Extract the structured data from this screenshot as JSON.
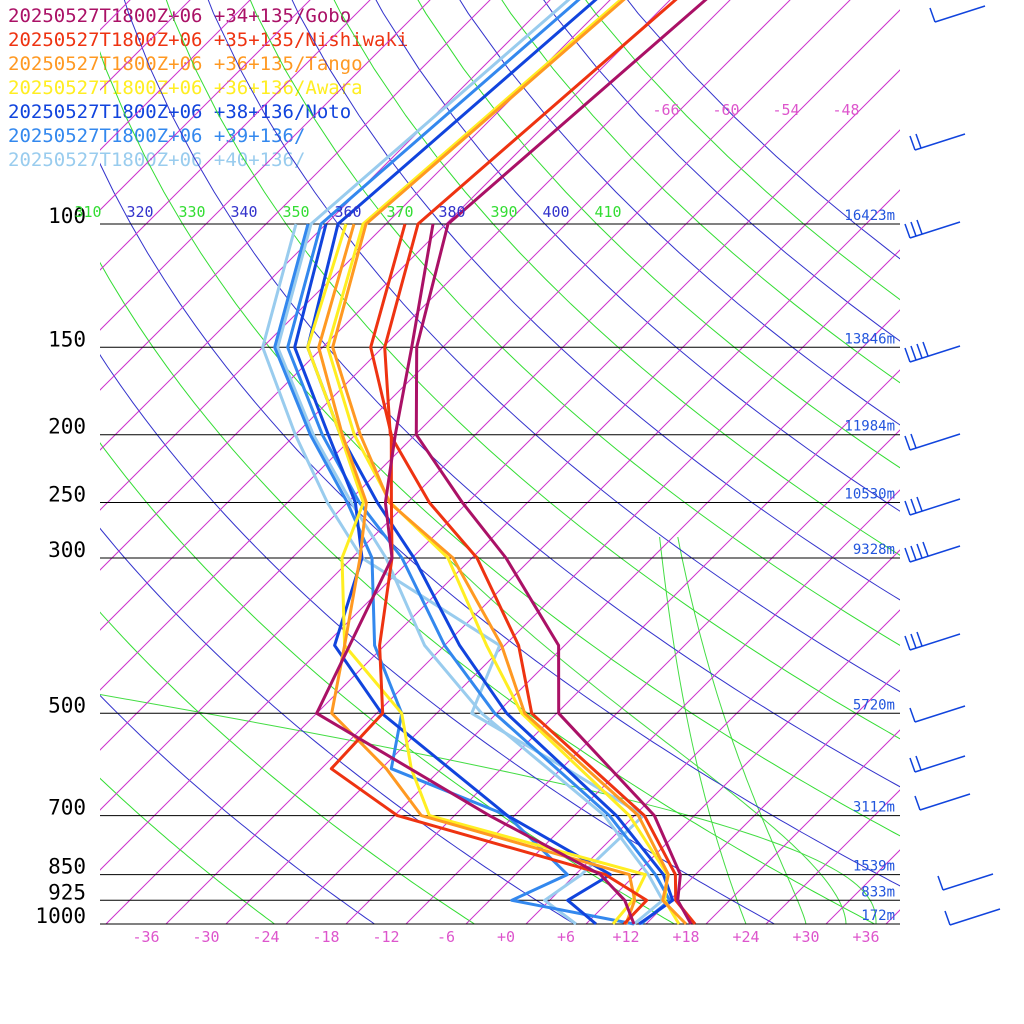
{
  "chart_data": {
    "type": "line",
    "subtype": "skew-t log-p sounding",
    "x_axis_label": "",
    "y_axis_label": "",
    "pressure_levels": [
      100,
      150,
      200,
      250,
      300,
      500,
      700,
      850,
      925,
      1000
    ],
    "pressure_labels": [
      "100",
      "150",
      "200",
      "250",
      "300",
      "500",
      "700",
      "850",
      "925",
      "1000"
    ],
    "heights": [
      "16423m",
      "13846m",
      "11984m",
      "10530m",
      "9328m",
      "5720m",
      "3112m",
      "1539m",
      "833m",
      "172m"
    ],
    "temperature_ticks": [
      -36,
      -30,
      -24,
      -18,
      -12,
      -6,
      0,
      6,
      12,
      18,
      24,
      30,
      36
    ],
    "temperature_labels": [
      "-36",
      "-30",
      "-24",
      "-18",
      "-12",
      "-6",
      "+0",
      "+6",
      "+12",
      "+18",
      "+24",
      "+30",
      "+36"
    ],
    "upper_temp_labels": [
      "-66",
      "-60",
      "-54",
      "-48"
    ],
    "theta_labels": [
      "310",
      "320",
      "330",
      "340",
      "350",
      "360",
      "370",
      "380",
      "390",
      "400",
      "410"
    ],
    "series": [
      {
        "name": "20250527T1800Z+06 +34+135/Gobo",
        "color": "#aa1166",
        "temperature": [
          [
            1000,
            18.5
          ],
          [
            925,
            14.8
          ],
          [
            850,
            12.5
          ],
          [
            700,
            4.0
          ],
          [
            500,
            -15.8
          ],
          [
            400,
            -22.6
          ],
          [
            300,
            -36.6
          ],
          [
            250,
            -46.5
          ],
          [
            200,
            -57.9
          ],
          [
            150,
            -66.6
          ],
          [
            100,
            -75.8
          ]
        ],
        "dewpoint": [
          [
            1000,
            12.8
          ],
          [
            925,
            9.5
          ],
          [
            850,
            4.5
          ],
          [
            700,
            -12.5
          ],
          [
            500,
            -40.0
          ],
          [
            400,
            -43.5
          ],
          [
            300,
            -48.0
          ],
          [
            250,
            -54.2
          ],
          [
            200,
            -60.0
          ],
          [
            150,
            -67.1
          ],
          [
            100,
            -77.3
          ]
        ]
      },
      {
        "name": "20250527T1800Z+06 +35+135/Nishiwaki",
        "color": "#ee3311",
        "temperature": [
          [
            1000,
            18.9
          ],
          [
            925,
            14.6
          ],
          [
            850,
            12.0
          ],
          [
            700,
            3.0
          ],
          [
            500,
            -18.5
          ],
          [
            400,
            -26.6
          ],
          [
            300,
            -39.5
          ],
          [
            250,
            -49.8
          ],
          [
            200,
            -60.5
          ],
          [
            150,
            -69.8
          ],
          [
            100,
            -78.8
          ]
        ],
        "dewpoint": [
          [
            1000,
            11.8
          ],
          [
            925,
            11.7
          ],
          [
            850,
            5.0
          ],
          [
            700,
            -21.7
          ],
          [
            600,
            -33.0
          ],
          [
            500,
            -33.4
          ],
          [
            400,
            -40.5
          ],
          [
            300,
            -48.0
          ],
          [
            250,
            -53.6
          ],
          [
            200,
            -60.4
          ],
          [
            150,
            -71.2
          ],
          [
            100,
            -80.1
          ]
        ]
      },
      {
        "name": "20250527T1800Z+06 +36+135/Tango",
        "color": "#ff9922",
        "temperature": [
          [
            1000,
            18.0
          ],
          [
            925,
            13.3
          ],
          [
            850,
            11.3
          ],
          [
            700,
            2.4
          ],
          [
            500,
            -19.2
          ],
          [
            400,
            -28.3
          ],
          [
            300,
            -41.9
          ],
          [
            250,
            -53.8
          ],
          [
            200,
            -63.5
          ],
          [
            150,
            -75.0
          ],
          [
            100,
            -84.0
          ]
        ],
        "dewpoint": [
          [
            1000,
            12.0
          ],
          [
            925,
            10.5
          ],
          [
            850,
            7.4
          ],
          [
            700,
            -19.3
          ],
          [
            600,
            -27.5
          ],
          [
            500,
            -38.5
          ],
          [
            400,
            -44.0
          ],
          [
            300,
            -51.2
          ],
          [
            250,
            -56.1
          ],
          [
            200,
            -65.3
          ],
          [
            150,
            -76.4
          ],
          [
            100,
            -85.2
          ]
        ]
      },
      {
        "name": "20250527T1800Z+06 +36+136/Awara",
        "color": "#ffee22",
        "temperature": [
          [
            1000,
            17.3
          ],
          [
            925,
            13.5
          ],
          [
            850,
            11.2
          ],
          [
            700,
            1.5
          ],
          [
            500,
            -19.5
          ],
          [
            400,
            -29.8
          ],
          [
            300,
            -42.4
          ],
          [
            250,
            -53.7
          ],
          [
            200,
            -64.1
          ],
          [
            150,
            -75.5
          ],
          [
            100,
            -84.3
          ]
        ],
        "dewpoint": [
          [
            1000,
            10.7
          ],
          [
            925,
            10.3
          ],
          [
            850,
            9.0
          ],
          [
            700,
            -18.5
          ],
          [
            600,
            -25.0
          ],
          [
            500,
            -31.5
          ],
          [
            400,
            -44.0
          ],
          [
            300,
            -53.0
          ],
          [
            250,
            -56.4
          ],
          [
            200,
            -65.5
          ],
          [
            150,
            -77.5
          ],
          [
            100,
            -86.0
          ]
        ]
      },
      {
        "name": "20250527T1800Z+06 +38+136/Noto",
        "color": "#1144dd",
        "temperature": [
          [
            1000,
            13.3
          ],
          [
            925,
            14.3
          ],
          [
            850,
            10.8
          ],
          [
            700,
            0.2
          ],
          [
            500,
            -21.0
          ],
          [
            400,
            -32.5
          ],
          [
            300,
            -45.8
          ],
          [
            250,
            -55.0
          ],
          [
            200,
            -65.5
          ],
          [
            150,
            -77.5
          ],
          [
            100,
            -86.8
          ]
        ],
        "dewpoint": [
          [
            1000,
            9.0
          ],
          [
            925,
            3.8
          ],
          [
            850,
            5.5
          ],
          [
            700,
            -10.7
          ],
          [
            500,
            -33.5
          ],
          [
            400,
            -45.0
          ],
          [
            300,
            -51.0
          ],
          [
            250,
            -57.2
          ],
          [
            200,
            -66.7
          ],
          [
            150,
            -78.8
          ],
          [
            100,
            -88.0
          ]
        ]
      },
      {
        "name": "20250527T1800Z+06 +39+136/",
        "color": "#3388ee",
        "temperature": [
          [
            1000,
            13.5
          ],
          [
            925,
            14.0
          ],
          [
            850,
            10.0
          ],
          [
            700,
            -0.5
          ],
          [
            500,
            -22.2
          ],
          [
            400,
            -34.0
          ],
          [
            300,
            -47.0
          ],
          [
            250,
            -56.8
          ],
          [
            200,
            -67.3
          ],
          [
            150,
            -79.5
          ],
          [
            100,
            -88.5
          ]
        ],
        "dewpoint": [
          [
            1000,
            12.8
          ],
          [
            925,
            -1.8
          ],
          [
            850,
            1.2
          ],
          [
            700,
            -10.7
          ],
          [
            600,
            -27.0
          ],
          [
            500,
            -31.5
          ],
          [
            400,
            -41.0
          ],
          [
            300,
            -50.0
          ],
          [
            250,
            -58.0
          ],
          [
            200,
            -68.5
          ],
          [
            150,
            -80.8
          ],
          [
            100,
            -89.8
          ]
        ]
      },
      {
        "name": "20250527T1800Z+06 +40+136/",
        "color": "#99ccee",
        "temperature": [
          [
            1000,
            12.8
          ],
          [
            925,
            13.3
          ],
          [
            850,
            9.3
          ],
          [
            700,
            -1.0
          ],
          [
            500,
            -23.5
          ],
          [
            400,
            -36.0
          ],
          [
            300,
            -48.6
          ],
          [
            250,
            -57.6
          ],
          [
            200,
            -68.2
          ],
          [
            150,
            -80.5
          ],
          [
            100,
            -89.5
          ]
        ],
        "dewpoint": [
          [
            1000,
            7.0
          ],
          [
            925,
            1.5
          ],
          [
            850,
            2.6
          ],
          [
            700,
            2.9
          ],
          [
            600,
            -9.5
          ],
          [
            500,
            -24.5
          ],
          [
            400,
            -28.5
          ],
          [
            300,
            -51.0
          ],
          [
            250,
            -60.0
          ],
          [
            200,
            -70.0
          ],
          [
            150,
            -82.0
          ],
          [
            100,
            -91.0
          ]
        ]
      }
    ]
  }
}
